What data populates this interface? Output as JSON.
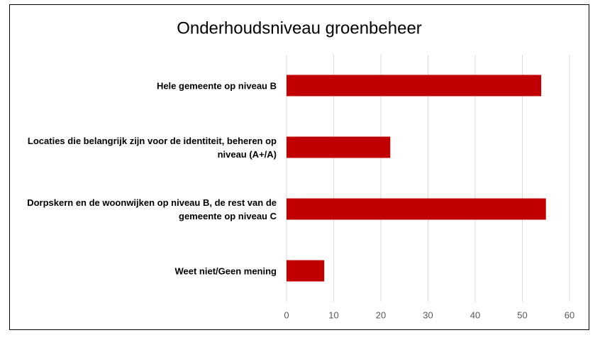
{
  "chart_data": {
    "type": "bar",
    "orientation": "horizontal",
    "title": "Onderhoudsniveau groenbeheer",
    "categories": [
      "Hele gemeente op niveau B",
      "Locaties die belangrijk zijn voor de identiteit, beheren op niveau (A+/A)",
      "Dorpskern en de woonwijken op niveau B, de rest van de gemeente op niveau C",
      "Weet niet/Geen mening"
    ],
    "values": [
      54,
      22,
      55,
      8
    ],
    "color": "#c00000",
    "xlim": [
      0,
      60
    ],
    "xticks": [
      0,
      10,
      20,
      30,
      40,
      50,
      60
    ],
    "grid": true
  }
}
